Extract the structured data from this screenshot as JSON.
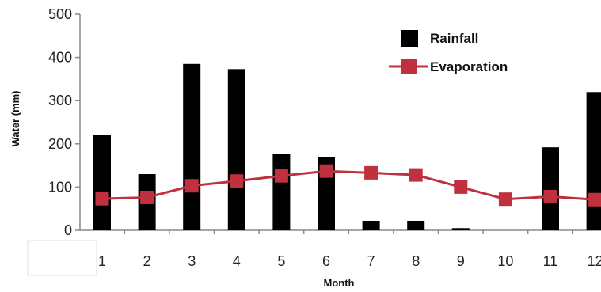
{
  "chart_data": {
    "type": "bar",
    "xlabel": "Month",
    "ylabel": "Water (mm)",
    "categories": [
      "1",
      "2",
      "3",
      "4",
      "5",
      "6",
      "7",
      "8",
      "9",
      "10",
      "11",
      "12"
    ],
    "ylim": [
      0,
      500
    ],
    "yticks": [
      "0",
      "100",
      "200",
      "300",
      "400",
      "500"
    ],
    "grid": false,
    "legend_position": "top-right",
    "series": [
      {
        "name": "Rainfall",
        "type": "bar",
        "color": "#000000",
        "values": [
          220,
          130,
          385,
          373,
          176,
          170,
          22,
          22,
          5,
          0,
          192,
          320
        ]
      },
      {
        "name": "Evaporation",
        "type": "line",
        "color": "#c0313f",
        "values": [
          73,
          76,
          103,
          114,
          126,
          137,
          133,
          128,
          100,
          72,
          78,
          71
        ]
      }
    ]
  }
}
